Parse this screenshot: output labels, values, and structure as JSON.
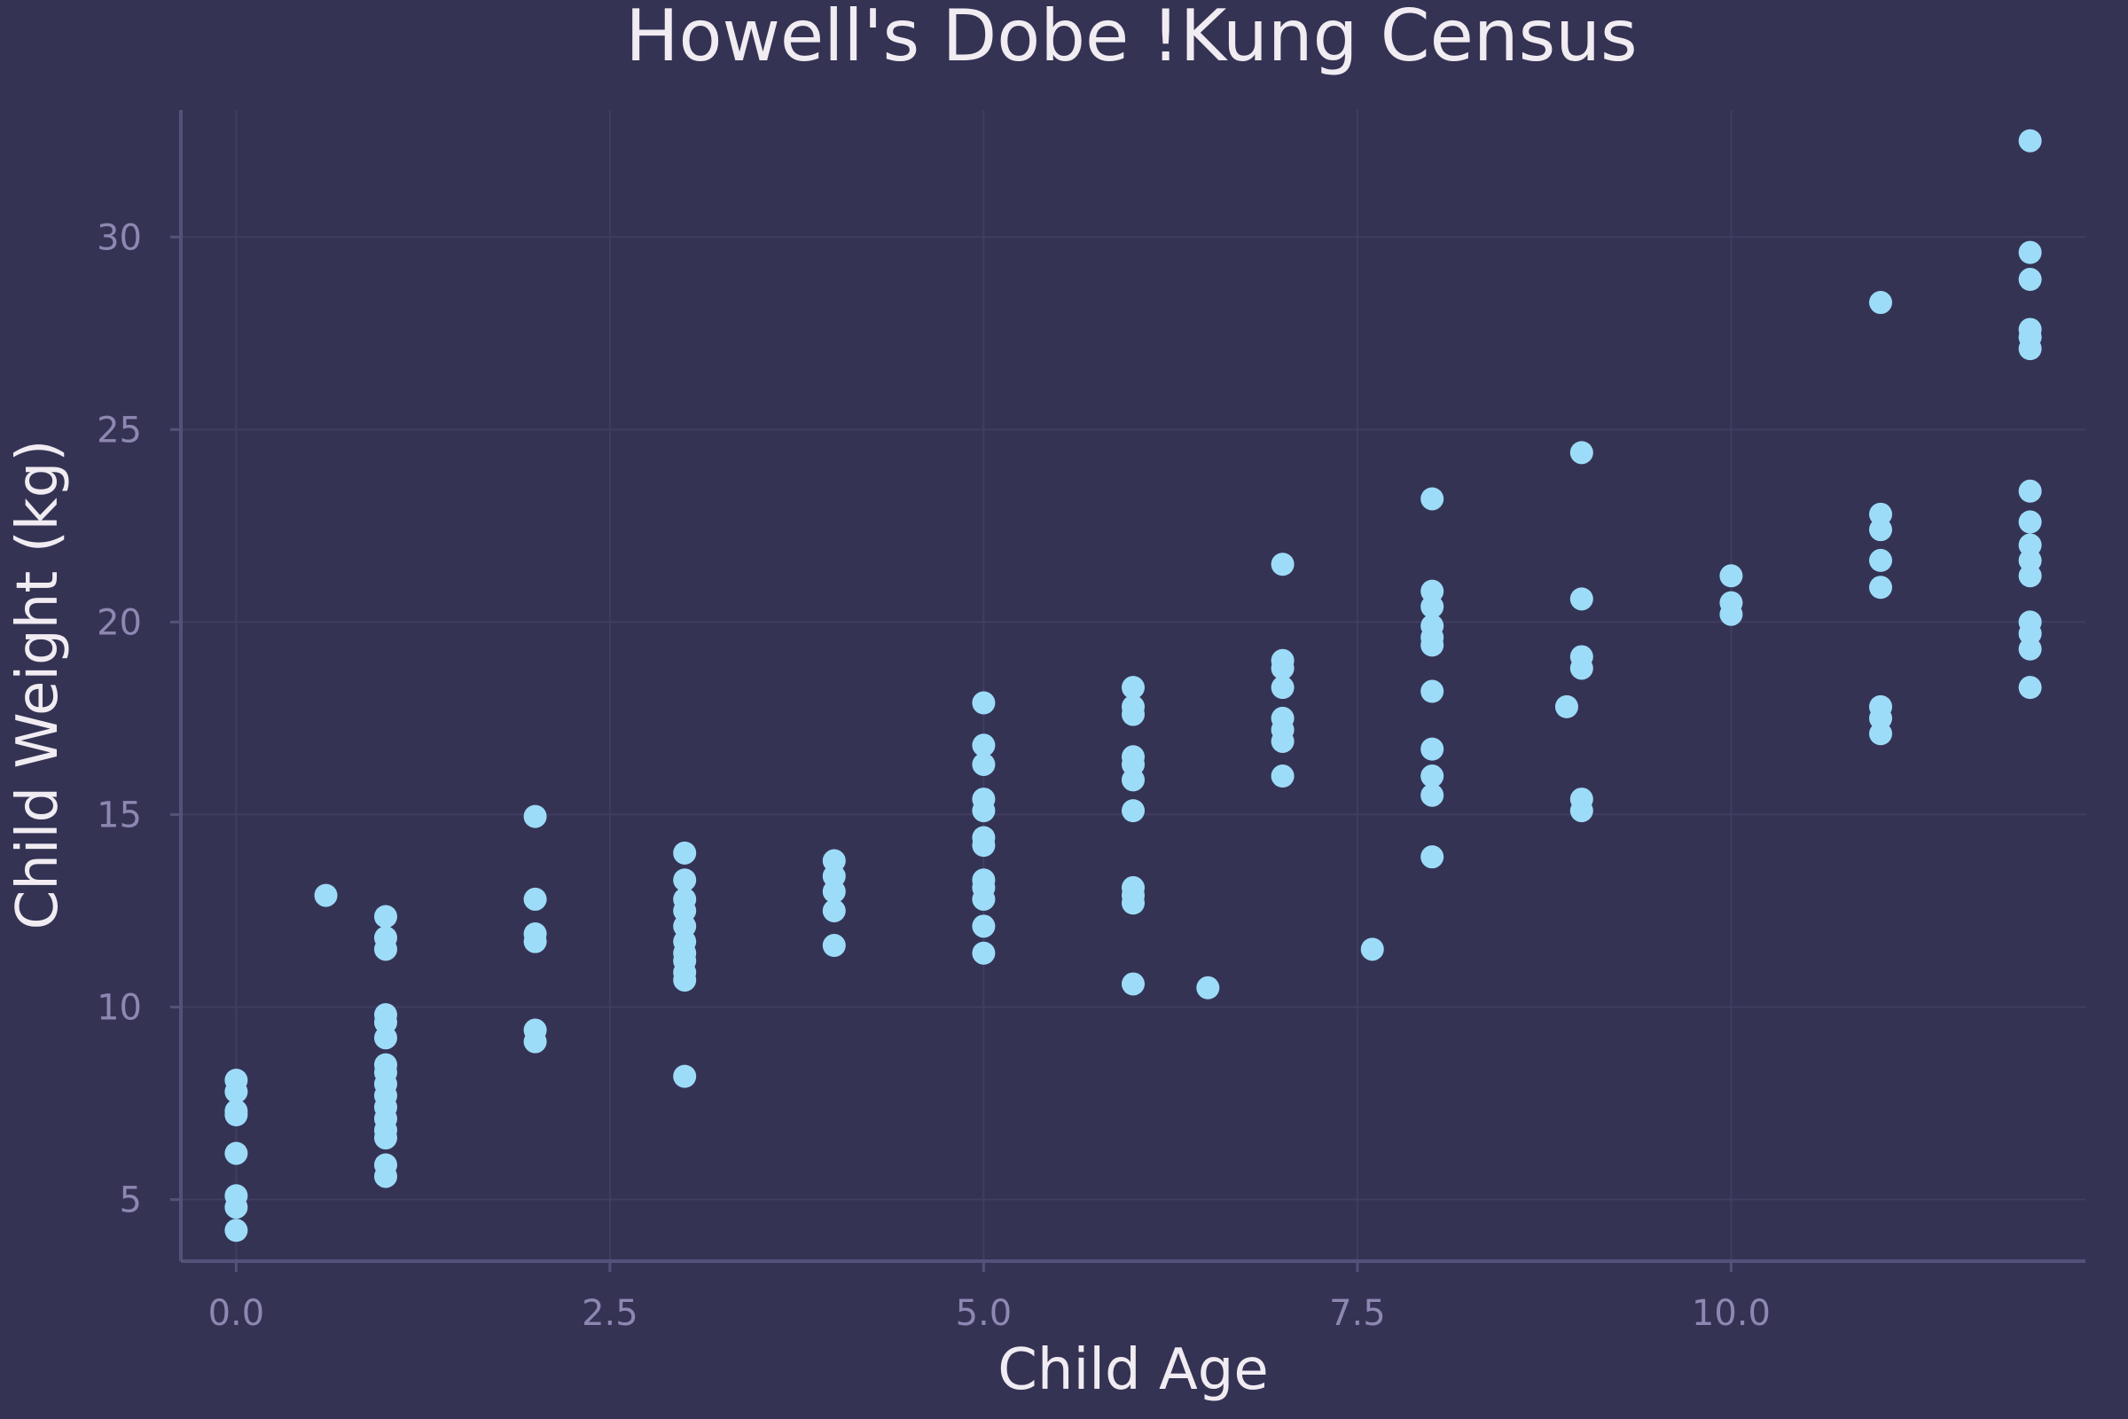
{
  "chart_data": {
    "type": "scatter",
    "title": "Howell's Dobe !Kung Census",
    "xlabel": "Child Age",
    "ylabel": "Child Weight (kg)",
    "xlim": [
      -0.37,
      12.37
    ],
    "ylim": [
      3.4,
      33.3
    ],
    "x_ticks": [
      0.0,
      2.5,
      5.0,
      7.5,
      10.0
    ],
    "x_tick_labels": [
      "0.0",
      "2.5",
      "5.0",
      "7.5",
      "10.0"
    ],
    "y_ticks": [
      5,
      10,
      15,
      20,
      25,
      30
    ],
    "y_tick_labels": [
      "5",
      "10",
      "15",
      "20",
      "25",
      "30"
    ],
    "grid": true,
    "colors": {
      "background": "#353354",
      "point": "#9ddcf8"
    },
    "points": [
      {
        "x": 0,
        "y": 8.1
      },
      {
        "x": 0,
        "y": 7.8
      },
      {
        "x": 0,
        "y": 7.3
      },
      {
        "x": 0,
        "y": 7.2
      },
      {
        "x": 0,
        "y": 6.2
      },
      {
        "x": 0,
        "y": 5.1
      },
      {
        "x": 0,
        "y": 4.8
      },
      {
        "x": 0,
        "y": 4.2
      },
      {
        "x": 0.6,
        "y": 12.9
      },
      {
        "x": 1,
        "y": 12.35
      },
      {
        "x": 1,
        "y": 11.8
      },
      {
        "x": 1,
        "y": 11.5
      },
      {
        "x": 1,
        "y": 9.8
      },
      {
        "x": 1,
        "y": 9.6
      },
      {
        "x": 1,
        "y": 9.2
      },
      {
        "x": 1,
        "y": 8.5
      },
      {
        "x": 1,
        "y": 8.3
      },
      {
        "x": 1,
        "y": 8.0
      },
      {
        "x": 1,
        "y": 7.7
      },
      {
        "x": 1,
        "y": 7.4
      },
      {
        "x": 1,
        "y": 7.1
      },
      {
        "x": 1,
        "y": 6.8
      },
      {
        "x": 1,
        "y": 6.6
      },
      {
        "x": 1,
        "y": 5.9
      },
      {
        "x": 1,
        "y": 5.6
      },
      {
        "x": 2,
        "y": 14.95
      },
      {
        "x": 2,
        "y": 12.8
      },
      {
        "x": 2,
        "y": 11.9
      },
      {
        "x": 2,
        "y": 11.7
      },
      {
        "x": 2,
        "y": 9.4
      },
      {
        "x": 2,
        "y": 9.1
      },
      {
        "x": 3,
        "y": 14.0
      },
      {
        "x": 3,
        "y": 13.3
      },
      {
        "x": 3,
        "y": 12.8
      },
      {
        "x": 3,
        "y": 12.5
      },
      {
        "x": 3,
        "y": 12.1
      },
      {
        "x": 3,
        "y": 11.7
      },
      {
        "x": 3,
        "y": 11.4
      },
      {
        "x": 3,
        "y": 11.2
      },
      {
        "x": 3,
        "y": 10.9
      },
      {
        "x": 3,
        "y": 10.7
      },
      {
        "x": 3,
        "y": 8.2
      },
      {
        "x": 4,
        "y": 13.8
      },
      {
        "x": 4,
        "y": 13.4
      },
      {
        "x": 4,
        "y": 13.0
      },
      {
        "x": 4,
        "y": 12.5
      },
      {
        "x": 4,
        "y": 11.6
      },
      {
        "x": 5,
        "y": 17.9
      },
      {
        "x": 5,
        "y": 16.8
      },
      {
        "x": 5,
        "y": 16.3
      },
      {
        "x": 5,
        "y": 15.4
      },
      {
        "x": 5,
        "y": 15.1
      },
      {
        "x": 5,
        "y": 14.4
      },
      {
        "x": 5,
        "y": 14.2
      },
      {
        "x": 5,
        "y": 13.3
      },
      {
        "x": 5,
        "y": 13.1
      },
      {
        "x": 5,
        "y": 12.8
      },
      {
        "x": 5,
        "y": 12.1
      },
      {
        "x": 5,
        "y": 11.4
      },
      {
        "x": 6,
        "y": 18.3
      },
      {
        "x": 6,
        "y": 17.8
      },
      {
        "x": 6,
        "y": 17.6
      },
      {
        "x": 6,
        "y": 16.5
      },
      {
        "x": 6,
        "y": 16.3
      },
      {
        "x": 6,
        "y": 15.9
      },
      {
        "x": 6,
        "y": 15.1
      },
      {
        "x": 6,
        "y": 13.1
      },
      {
        "x": 6,
        "y": 12.9
      },
      {
        "x": 6,
        "y": 12.7
      },
      {
        "x": 6,
        "y": 10.6
      },
      {
        "x": 6.5,
        "y": 10.5
      },
      {
        "x": 7,
        "y": 21.5
      },
      {
        "x": 7,
        "y": 19.0
      },
      {
        "x": 7,
        "y": 18.8
      },
      {
        "x": 7,
        "y": 18.3
      },
      {
        "x": 7,
        "y": 17.5
      },
      {
        "x": 7,
        "y": 17.2
      },
      {
        "x": 7,
        "y": 16.9
      },
      {
        "x": 7,
        "y": 16.0
      },
      {
        "x": 7.6,
        "y": 11.5
      },
      {
        "x": 8,
        "y": 23.2
      },
      {
        "x": 8,
        "y": 20.8
      },
      {
        "x": 8,
        "y": 20.4
      },
      {
        "x": 8,
        "y": 19.9
      },
      {
        "x": 8,
        "y": 19.6
      },
      {
        "x": 8,
        "y": 19.4
      },
      {
        "x": 8,
        "y": 18.2
      },
      {
        "x": 8,
        "y": 16.7
      },
      {
        "x": 8,
        "y": 16.0
      },
      {
        "x": 8,
        "y": 15.5
      },
      {
        "x": 8,
        "y": 13.9
      },
      {
        "x": 8.9,
        "y": 17.8
      },
      {
        "x": 9,
        "y": 24.4
      },
      {
        "x": 9,
        "y": 20.6
      },
      {
        "x": 9,
        "y": 19.1
      },
      {
        "x": 9,
        "y": 18.8
      },
      {
        "x": 9,
        "y": 15.4
      },
      {
        "x": 9,
        "y": 15.1
      },
      {
        "x": 10,
        "y": 21.2
      },
      {
        "x": 10,
        "y": 20.5
      },
      {
        "x": 10,
        "y": 20.2
      },
      {
        "x": 11,
        "y": 28.3
      },
      {
        "x": 11,
        "y": 22.8
      },
      {
        "x": 11,
        "y": 22.4
      },
      {
        "x": 11,
        "y": 21.6
      },
      {
        "x": 11,
        "y": 20.9
      },
      {
        "x": 11,
        "y": 17.8
      },
      {
        "x": 11,
        "y": 17.5
      },
      {
        "x": 11,
        "y": 17.1
      },
      {
        "x": 12,
        "y": 32.5
      },
      {
        "x": 12,
        "y": 29.6
      },
      {
        "x": 12,
        "y": 28.9
      },
      {
        "x": 12,
        "y": 27.6
      },
      {
        "x": 12,
        "y": 27.4
      },
      {
        "x": 12,
        "y": 27.1
      },
      {
        "x": 12,
        "y": 23.4
      },
      {
        "x": 12,
        "y": 22.6
      },
      {
        "x": 12,
        "y": 22.0
      },
      {
        "x": 12,
        "y": 21.6
      },
      {
        "x": 12,
        "y": 21.2
      },
      {
        "x": 12,
        "y": 20.0
      },
      {
        "x": 12,
        "y": 19.7
      },
      {
        "x": 12,
        "y": 19.3
      },
      {
        "x": 12,
        "y": 18.3
      }
    ]
  }
}
